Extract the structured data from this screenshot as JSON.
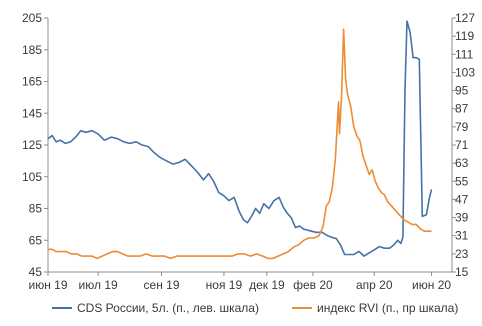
{
  "chart_data": {
    "type": "line",
    "title": "",
    "x_ticks": [
      "июн 19",
      "июл 19",
      "сен 19",
      "ноя 19",
      "дек 19",
      "фев 20",
      "апр 20",
      "июн 20"
    ],
    "x_tick_dates": [
      "2019-06-01",
      "2019-07-20",
      "2019-09-20",
      "2019-11-20",
      "2020-01-01",
      "2020-02-15",
      "2020-04-15",
      "2020-06-10"
    ],
    "x_range": [
      "2019-06-01",
      "2020-06-30"
    ],
    "left_axis": {
      "label": "",
      "min": 45,
      "max": 205,
      "ticks": [
        45,
        65,
        85,
        105,
        125,
        145,
        165,
        185,
        205
      ]
    },
    "right_axis": {
      "label": "",
      "min": 15,
      "max": 127,
      "ticks": [
        15,
        23,
        31,
        39,
        47,
        55,
        63,
        71,
        79,
        87,
        95,
        103,
        111,
        119,
        127
      ]
    },
    "legend_position": "bottom",
    "grid": false,
    "series": [
      {
        "name": "CDS России, 5л. (п., лев. шкала)",
        "axis": "left",
        "color": "#4472a8",
        "points": [
          [
            "2019-06-01",
            129
          ],
          [
            "2019-06-05",
            131
          ],
          [
            "2019-06-09",
            127
          ],
          [
            "2019-06-13",
            128
          ],
          [
            "2019-06-18",
            126
          ],
          [
            "2019-06-23",
            127
          ],
          [
            "2019-06-28",
            130
          ],
          [
            "2019-07-03",
            134
          ],
          [
            "2019-07-08",
            133
          ],
          [
            "2019-07-14",
            134
          ],
          [
            "2019-07-20",
            132
          ],
          [
            "2019-07-26",
            128
          ],
          [
            "2019-08-02",
            130
          ],
          [
            "2019-08-08",
            129
          ],
          [
            "2019-08-14",
            127
          ],
          [
            "2019-08-20",
            126
          ],
          [
            "2019-08-26",
            127
          ],
          [
            "2019-09-01",
            125
          ],
          [
            "2019-09-07",
            124
          ],
          [
            "2019-09-13",
            120
          ],
          [
            "2019-09-19",
            117
          ],
          [
            "2019-09-25",
            115
          ],
          [
            "2019-10-01",
            113
          ],
          [
            "2019-10-07",
            114
          ],
          [
            "2019-10-13",
            116
          ],
          [
            "2019-10-19",
            112
          ],
          [
            "2019-10-25",
            108
          ],
          [
            "2019-10-31",
            103
          ],
          [
            "2019-11-05",
            107
          ],
          [
            "2019-11-10",
            102
          ],
          [
            "2019-11-15",
            95
          ],
          [
            "2019-11-20",
            93
          ],
          [
            "2019-11-25",
            90
          ],
          [
            "2019-11-30",
            92
          ],
          [
            "2019-12-05",
            83
          ],
          [
            "2019-12-09",
            78
          ],
          [
            "2019-12-13",
            76
          ],
          [
            "2019-12-17",
            80
          ],
          [
            "2019-12-21",
            85
          ],
          [
            "2019-12-25",
            82
          ],
          [
            "2019-12-29",
            88
          ],
          [
            "2020-01-03",
            85
          ],
          [
            "2020-01-08",
            90
          ],
          [
            "2020-01-13",
            92
          ],
          [
            "2020-01-17",
            86
          ],
          [
            "2020-01-21",
            82
          ],
          [
            "2020-01-25",
            79
          ],
          [
            "2020-01-29",
            73
          ],
          [
            "2020-02-02",
            74
          ],
          [
            "2020-02-06",
            72
          ],
          [
            "2020-02-12",
            71
          ],
          [
            "2020-02-18",
            70
          ],
          [
            "2020-02-24",
            70
          ],
          [
            "2020-02-29",
            68
          ],
          [
            "2020-03-04",
            67
          ],
          [
            "2020-03-09",
            66
          ],
          [
            "2020-03-13",
            62
          ],
          [
            "2020-03-17",
            56
          ],
          [
            "2020-03-21",
            56
          ],
          [
            "2020-03-26",
            56
          ],
          [
            "2020-03-31",
            58
          ],
          [
            "2020-04-05",
            55
          ],
          [
            "2020-04-10",
            57
          ],
          [
            "2020-04-15",
            59
          ],
          [
            "2020-04-20",
            61
          ],
          [
            "2020-04-25",
            60
          ],
          [
            "2020-04-30",
            60
          ],
          [
            "2020-05-04",
            62
          ],
          [
            "2020-05-08",
            65
          ],
          [
            "2020-05-11",
            63
          ],
          [
            "2020-05-13",
            67
          ],
          [
            "2020-05-15",
            160
          ],
          [
            "2020-05-17",
            203
          ],
          [
            "2020-05-20",
            196
          ],
          [
            "2020-05-23",
            180
          ],
          [
            "2020-05-26",
            180
          ],
          [
            "2020-05-29",
            179
          ],
          [
            "2020-06-01",
            80
          ],
          [
            "2020-06-05",
            81
          ],
          [
            "2020-06-08",
            92
          ],
          [
            "2020-06-10",
            97
          ]
        ]
      },
      {
        "name": "индекс RVI (п., пр шкала)",
        "axis": "right",
        "color": "#ed8c36",
        "points": [
          [
            "2019-06-01",
            25
          ],
          [
            "2019-06-05",
            25
          ],
          [
            "2019-06-09",
            24
          ],
          [
            "2019-06-14",
            24
          ],
          [
            "2019-06-19",
            24
          ],
          [
            "2019-06-24",
            23
          ],
          [
            "2019-06-29",
            23
          ],
          [
            "2019-07-04",
            22
          ],
          [
            "2019-07-09",
            22
          ],
          [
            "2019-07-14",
            22
          ],
          [
            "2019-07-19",
            21
          ],
          [
            "2019-07-24",
            22
          ],
          [
            "2019-07-29",
            23
          ],
          [
            "2019-08-03",
            24
          ],
          [
            "2019-08-08",
            24
          ],
          [
            "2019-08-13",
            23
          ],
          [
            "2019-08-18",
            22
          ],
          [
            "2019-08-24",
            22
          ],
          [
            "2019-08-30",
            22
          ],
          [
            "2019-09-05",
            23
          ],
          [
            "2019-09-11",
            22
          ],
          [
            "2019-09-17",
            22
          ],
          [
            "2019-09-23",
            22
          ],
          [
            "2019-09-29",
            21
          ],
          [
            "2019-10-05",
            22
          ],
          [
            "2019-10-11",
            22
          ],
          [
            "2019-10-17",
            22
          ],
          [
            "2019-10-23",
            22
          ],
          [
            "2019-10-29",
            22
          ],
          [
            "2019-11-04",
            22
          ],
          [
            "2019-11-10",
            22
          ],
          [
            "2019-11-16",
            22
          ],
          [
            "2019-11-22",
            22
          ],
          [
            "2019-11-28",
            22
          ],
          [
            "2019-12-04",
            23
          ],
          [
            "2019-12-10",
            23
          ],
          [
            "2019-12-16",
            22
          ],
          [
            "2019-12-22",
            23
          ],
          [
            "2019-12-28",
            22
          ],
          [
            "2020-01-02",
            21
          ],
          [
            "2020-01-07",
            21
          ],
          [
            "2020-01-12",
            22
          ],
          [
            "2020-01-17",
            23
          ],
          [
            "2020-01-22",
            24
          ],
          [
            "2020-01-27",
            26
          ],
          [
            "2020-02-01",
            27
          ],
          [
            "2020-02-06",
            29
          ],
          [
            "2020-02-11",
            30
          ],
          [
            "2020-02-16",
            30
          ],
          [
            "2020-02-21",
            31
          ],
          [
            "2020-02-25",
            35
          ],
          [
            "2020-02-28",
            44
          ],
          [
            "2020-03-02",
            46
          ],
          [
            "2020-03-05",
            52
          ],
          [
            "2020-03-08",
            65
          ],
          [
            "2020-03-11",
            90
          ],
          [
            "2020-03-12",
            76
          ],
          [
            "2020-03-14",
            92
          ],
          [
            "2020-03-16",
            122
          ],
          [
            "2020-03-18",
            100
          ],
          [
            "2020-03-20",
            93
          ],
          [
            "2020-03-23",
            88
          ],
          [
            "2020-03-26",
            79
          ],
          [
            "2020-03-29",
            75
          ],
          [
            "2020-04-01",
            73
          ],
          [
            "2020-04-04",
            66
          ],
          [
            "2020-04-07",
            62
          ],
          [
            "2020-04-10",
            58
          ],
          [
            "2020-04-13",
            60
          ],
          [
            "2020-04-16",
            55
          ],
          [
            "2020-04-19",
            52
          ],
          [
            "2020-04-22",
            50
          ],
          [
            "2020-04-25",
            49
          ],
          [
            "2020-04-28",
            46
          ],
          [
            "2020-05-02",
            44
          ],
          [
            "2020-05-06",
            42
          ],
          [
            "2020-05-10",
            40
          ],
          [
            "2020-05-14",
            38
          ],
          [
            "2020-05-18",
            37
          ],
          [
            "2020-05-22",
            36
          ],
          [
            "2020-05-26",
            36
          ],
          [
            "2020-05-30",
            34
          ],
          [
            "2020-06-03",
            33
          ],
          [
            "2020-06-07",
            33
          ],
          [
            "2020-06-10",
            33
          ]
        ]
      }
    ]
  }
}
